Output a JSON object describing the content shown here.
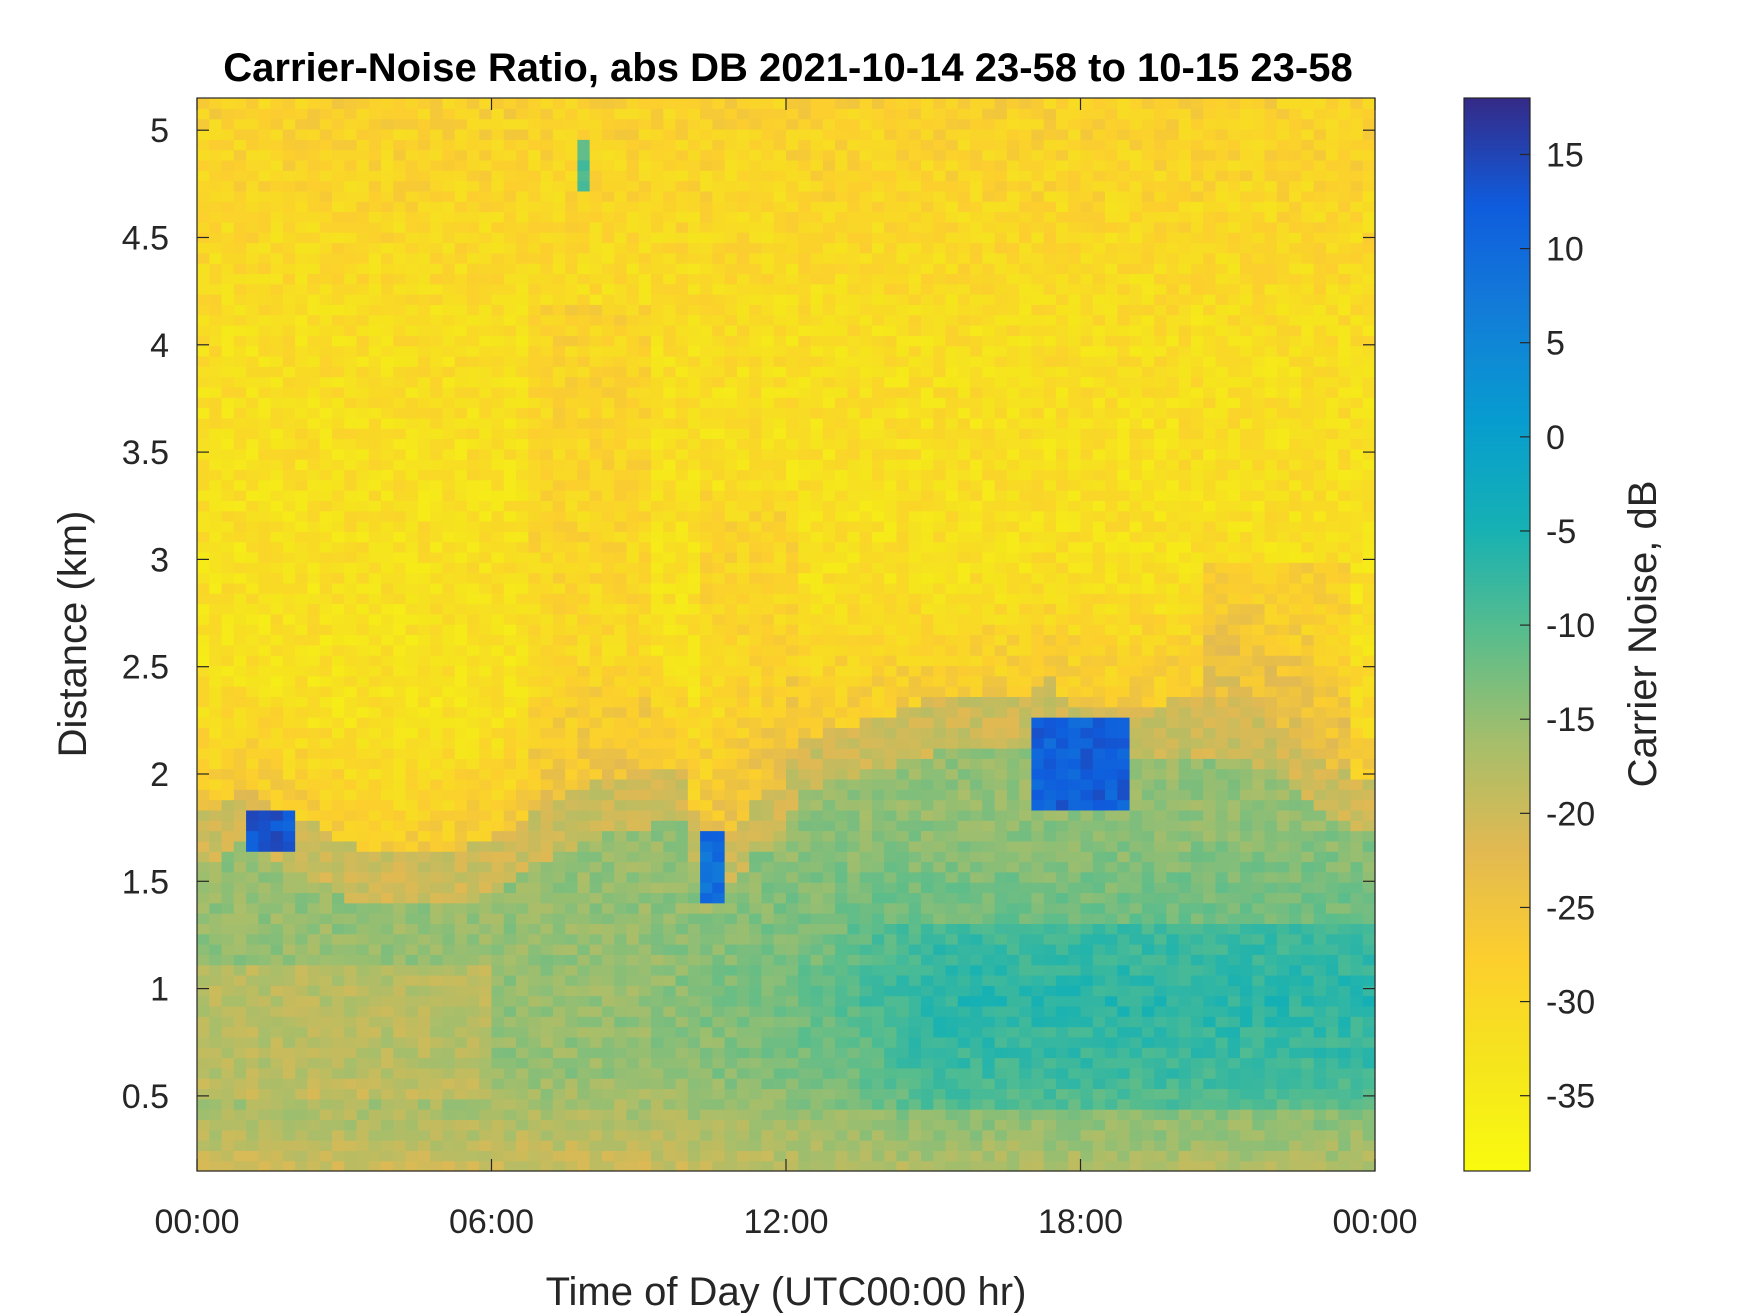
{
  "chart_data": {
    "type": "heatmap",
    "title": "Carrier-Noise Ratio, abs DB 2021-10-14 23-58 to 10-15 23-58",
    "xlabel": "Time of Day (UTC00:00 hr)",
    "ylabel": "Distance (km)",
    "xlim": [
      0,
      24
    ],
    "ylim": [
      0.15,
      5.15
    ],
    "x_ticks": [
      0,
      6,
      12,
      18,
      24
    ],
    "x_tick_labels": [
      "00:00",
      "06:00",
      "12:00",
      "18:00",
      "00:00"
    ],
    "y_ticks": [
      0.5,
      1,
      1.5,
      2,
      2.5,
      3,
      3.5,
      4,
      4.5,
      5
    ],
    "y_tick_labels": [
      "0.5",
      "1",
      "1.5",
      "2",
      "2.5",
      "3",
      "3.5",
      "4",
      "4.5",
      "5"
    ],
    "colorbar": {
      "label": "Carrier Noise, dB",
      "range": [
        -39,
        18
      ],
      "ticks": [
        -35,
        -30,
        -25,
        -20,
        -15,
        -10,
        -5,
        0,
        5,
        10,
        15
      ],
      "tick_labels": [
        "-35",
        "-30",
        "-25",
        "-20",
        "-15",
        "-10",
        "-5",
        "0",
        "5",
        "10",
        "15"
      ],
      "colormap": "parula-reversed"
    },
    "signal_top_km": [
      [
        0,
        1.85
      ],
      [
        0.5,
        1.85
      ],
      [
        1.0,
        1.95
      ],
      [
        1.5,
        1.85
      ],
      [
        2.0,
        1.8
      ],
      [
        2.5,
        1.75
      ],
      [
        3.0,
        1.68
      ],
      [
        4.0,
        1.63
      ],
      [
        5.0,
        1.63
      ],
      [
        6.0,
        1.7
      ],
      [
        7.0,
        1.85
      ],
      [
        8.0,
        1.95
      ],
      [
        9.0,
        2.0
      ],
      [
        10.0,
        2.03
      ],
      [
        10.3,
        1.6
      ],
      [
        10.8,
        1.72
      ],
      [
        11.5,
        1.9
      ],
      [
        12.0,
        1.95
      ],
      [
        12.2,
        2.15
      ],
      [
        13.0,
        2.22
      ],
      [
        14.0,
        2.27
      ],
      [
        15.0,
        2.35
      ],
      [
        16.0,
        2.35
      ],
      [
        17.0,
        2.35
      ],
      [
        17.3,
        2.45
      ],
      [
        18.0,
        2.3
      ],
      [
        19.0,
        2.3
      ],
      [
        20.0,
        2.35
      ],
      [
        21.0,
        2.33
      ],
      [
        22.0,
        2.25
      ],
      [
        23.0,
        2.05
      ],
      [
        24.0,
        1.95
      ]
    ],
    "features": [
      {
        "label": "strong return",
        "x": [
          1.0,
          2.1
        ],
        "y": [
          1.62,
          1.85
        ],
        "value": 15
      },
      {
        "label": "strong return",
        "x": [
          10.2,
          10.7
        ],
        "y": [
          1.42,
          1.72
        ],
        "value": 12
      },
      {
        "label": "strong return",
        "x": [
          16.9,
          19.0
        ],
        "y": [
          1.85,
          2.25
        ],
        "value": 14
      },
      {
        "label": "strong return",
        "x": [
          7.8,
          7.9
        ],
        "y": [
          4.7,
          4.95
        ],
        "value": -7
      }
    ],
    "regions": [
      {
        "description": "noise above signal top",
        "value_range": [
          -36,
          -27
        ]
      },
      {
        "description": "boundary layer",
        "value_range": [
          -20,
          -10
        ]
      },
      {
        "description": "afternoon aerosol layer",
        "x": [
          13,
          24
        ],
        "y": [
          0.5,
          1.3
        ],
        "value_range": [
          -8,
          0
        ]
      },
      {
        "description": "surface layer",
        "y": [
          0.15,
          0.6
        ],
        "value_range": [
          -22,
          -14
        ]
      }
    ]
  }
}
